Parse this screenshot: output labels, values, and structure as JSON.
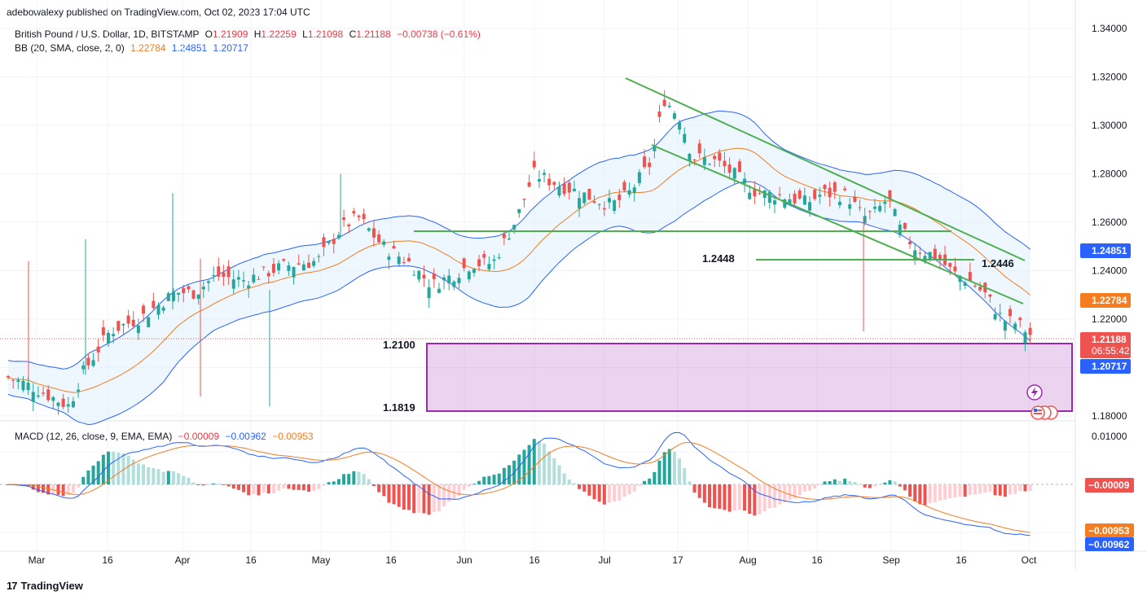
{
  "header": {
    "publisher_text": "adebowalexy published on TradingView.com, Oct 02, 2023 17:04 UTC"
  },
  "symbol_line": {
    "name": "British Pound / U.S. Dollar, 1D, BITSTAMP",
    "open_label": "O",
    "open": "1.21909",
    "high_label": "H",
    "high": "1.22259",
    "low_label": "L",
    "low": "1.21098",
    "close_label": "C",
    "close": "1.21188",
    "change": "−0.00738 (−0.61%)"
  },
  "bb_line": {
    "label": "BB (20, SMA, close, 2, 0)",
    "basis": "1.22784",
    "upper": "1.24851",
    "lower": "1.20717"
  },
  "macd_line": {
    "label": "MACD (12, 26, close, 9, EMA, EMA)",
    "hist": "−0.00009",
    "macd": "−0.00962",
    "signal": "−0.00953"
  },
  "price_axis": {
    "ticks": [
      "1.34000",
      "1.32000",
      "1.30000",
      "1.28000",
      "1.26000",
      "1.24000",
      "1.22000",
      "1.20000",
      "1.18000"
    ]
  },
  "price_badges": {
    "upper": "1.24851",
    "basis": "1.22784",
    "last": "1.21188",
    "countdown": "06:55:42",
    "lower": "1.20717"
  },
  "macd_axis": {
    "ticks": [
      "0.01000"
    ]
  },
  "macd_badges": {
    "hist": "−0.00009",
    "signal": "−0.00953",
    "macd": "−0.00962"
  },
  "time_axis": {
    "labels": [
      "Mar",
      "16",
      "Apr",
      "16",
      "May",
      "16",
      "Jun",
      "16",
      "Jul",
      "17",
      "Aug",
      "16",
      "Sep",
      "16",
      "Oct"
    ]
  },
  "annotations": {
    "level_a": "1.2448",
    "level_b": "1.2446",
    "zone_top": "1.2100",
    "zone_bottom": "1.1819"
  },
  "footer": {
    "brand": "TradingView"
  },
  "colors": {
    "up": "#26a69a",
    "down": "#ef5350",
    "bb_basis": "#f57c1f",
    "bb_band": "#2962ff",
    "bb_fill": "#e3f2fd",
    "trendline": "#4caf50",
    "zone": "#9c27b0",
    "macd": "#2962ff",
    "signal": "#f57c1f"
  },
  "chart_data": {
    "type": "candlestick",
    "title": "British Pound / U.S. Dollar, 1D, BITSTAMP",
    "x_range": [
      "2023-02-24",
      "2023-10-02"
    ],
    "ylim": [
      1.178,
      1.342
    ],
    "ohlc_key_points": [
      {
        "date": "2023-02-24",
        "close": 1.195
      },
      {
        "date": "2023-03-08",
        "close": 1.183
      },
      {
        "date": "2023-03-23",
        "close": 1.228
      },
      {
        "date": "2023-04-14",
        "close": 1.241
      },
      {
        "date": "2023-05-10",
        "close": 1.262
      },
      {
        "date": "2023-05-25",
        "close": 1.234
      },
      {
        "date": "2023-06-15",
        "close": 1.28
      },
      {
        "date": "2023-07-14",
        "close": 1.313
      },
      {
        "date": "2023-08-01",
        "close": 1.284
      },
      {
        "date": "2023-08-25",
        "close": 1.258
      },
      {
        "date": "2023-09-12",
        "close": 1.248
      },
      {
        "date": "2023-09-22",
        "close": 1.227
      },
      {
        "date": "2023-10-02",
        "open": 1.21909,
        "high": 1.22259,
        "low": 1.21098,
        "close": 1.21188
      }
    ],
    "bollinger": {
      "period": 20,
      "basis": 1.22784,
      "upper": 1.24851,
      "lower": 1.20717
    },
    "horizontal_levels": [
      1.2448,
      1.2446,
      1.21,
      1.1819
    ],
    "demand_zone": [
      1.1819,
      1.21
    ],
    "macd": {
      "fast": 12,
      "slow": 26,
      "signal": 9,
      "histogram": -9e-05,
      "macd": -0.00962,
      "signal_value": -0.00953
    }
  }
}
